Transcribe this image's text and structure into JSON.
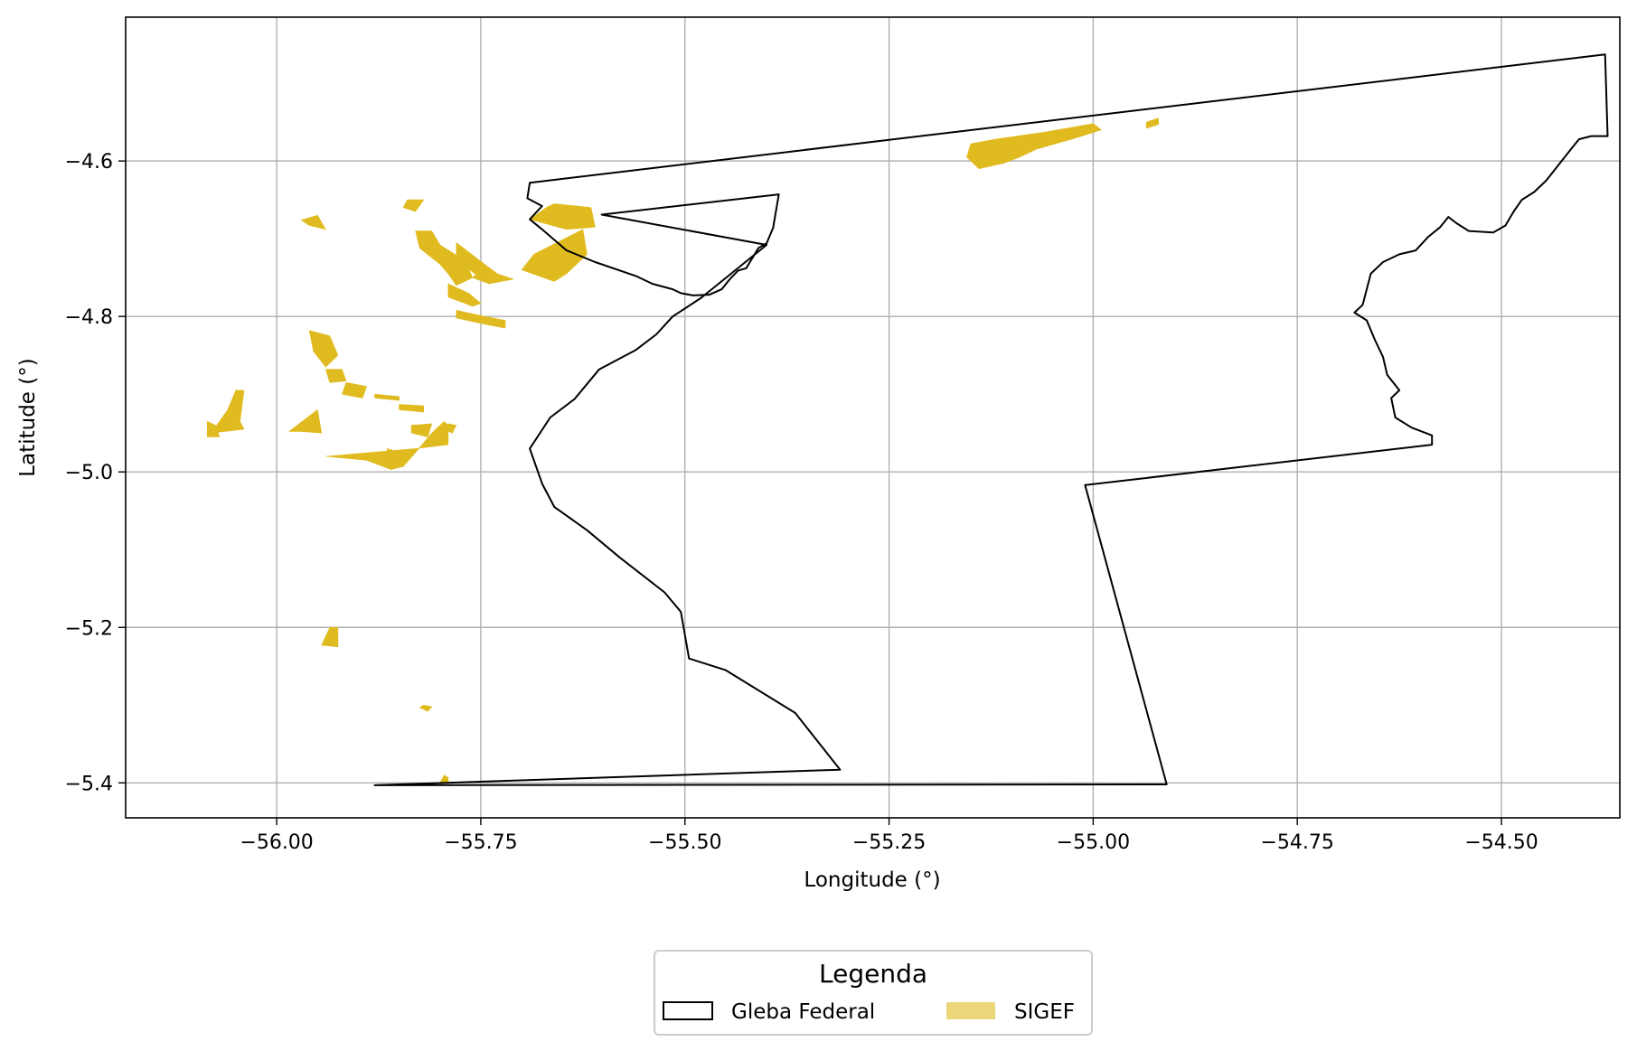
{
  "chart_data": {
    "type": "map",
    "title": "",
    "xlabel": "Longitude (°)",
    "ylabel": "Latitude (°)",
    "xlim": [
      -56.185,
      -54.355
    ],
    "ylim": [
      -5.445,
      -4.415
    ],
    "xticks": [
      -56.0,
      -55.75,
      -55.5,
      -55.25,
      -55.0,
      -54.75,
      -54.5
    ],
    "xtick_labels": [
      "−56.00",
      "−55.75",
      "−55.50",
      "−55.25",
      "−55.00",
      "−54.75",
      "−54.50"
    ],
    "yticks": [
      -4.6,
      -4.8,
      -5.0,
      -5.2,
      -5.4
    ],
    "ytick_labels": [
      "−4.6",
      "−4.8",
      "−5.0",
      "−5.2",
      "−5.4"
    ],
    "grid": true,
    "legend": {
      "title": "Legenda",
      "placement": "below",
      "entries": [
        {
          "label": "Gleba Federal",
          "style": "outline",
          "color": "#000000"
        },
        {
          "label": "SIGEF",
          "style": "fill",
          "color": "#e0bb1f"
        }
      ]
    },
    "series": [
      {
        "name": "Gleba Federal",
        "kind": "outline",
        "color": "#000000",
        "coordinates": [
          [
            -55.88,
            -5.403
          ],
          [
            -54.91,
            -5.402
          ],
          [
            -55.01,
            -5.017
          ],
          [
            -54.585,
            -4.965
          ],
          [
            -54.585,
            -4.953
          ],
          [
            -54.61,
            -4.943
          ],
          [
            -54.63,
            -4.93
          ],
          [
            -54.635,
            -4.905
          ],
          [
            -54.625,
            -4.895
          ],
          [
            -54.64,
            -4.875
          ],
          [
            -54.645,
            -4.852
          ],
          [
            -54.655,
            -4.83
          ],
          [
            -54.665,
            -4.805
          ],
          [
            -54.68,
            -4.795
          ],
          [
            -54.67,
            -4.785
          ],
          [
            -54.665,
            -4.765
          ],
          [
            -54.66,
            -4.745
          ],
          [
            -54.645,
            -4.73
          ],
          [
            -54.625,
            -4.72
          ],
          [
            -54.605,
            -4.715
          ],
          [
            -54.59,
            -4.698
          ],
          [
            -54.575,
            -4.685
          ],
          [
            -54.565,
            -4.672
          ],
          [
            -54.555,
            -4.68
          ],
          [
            -54.54,
            -4.69
          ],
          [
            -54.51,
            -4.692
          ],
          [
            -54.495,
            -4.683
          ],
          [
            -54.485,
            -4.665
          ],
          [
            -54.475,
            -4.65
          ],
          [
            -54.46,
            -4.64
          ],
          [
            -54.445,
            -4.625
          ],
          [
            -54.43,
            -4.605
          ],
          [
            -54.415,
            -4.585
          ],
          [
            -54.405,
            -4.572
          ],
          [
            -54.39,
            -4.568
          ],
          [
            -54.37,
            -4.568
          ],
          [
            -54.373,
            -4.463
          ],
          [
            -55.69,
            -4.628
          ],
          [
            -55.693,
            -4.648
          ],
          [
            -55.675,
            -4.658
          ],
          [
            -55.69,
            -4.675
          ],
          [
            -55.675,
            -4.688
          ],
          [
            -55.645,
            -4.715
          ],
          [
            -55.61,
            -4.73
          ],
          [
            -55.56,
            -4.748
          ],
          [
            -55.54,
            -4.758
          ],
          [
            -55.515,
            -4.765
          ],
          [
            -55.505,
            -4.77
          ],
          [
            -55.49,
            -4.773
          ],
          [
            -55.47,
            -4.772
          ],
          [
            -55.455,
            -4.765
          ],
          [
            -55.445,
            -4.752
          ],
          [
            -55.435,
            -4.741
          ],
          [
            -55.425,
            -4.738
          ],
          [
            -55.41,
            -4.712
          ],
          [
            -55.4,
            -4.706
          ],
          [
            -55.392,
            -4.686
          ],
          [
            -55.385,
            -4.643
          ],
          [
            -55.602,
            -4.669
          ],
          [
            -55.4,
            -4.708
          ],
          [
            -55.48,
            -4.776
          ],
          [
            -55.515,
            -4.8
          ],
          [
            -55.535,
            -4.823
          ],
          [
            -55.56,
            -4.843
          ],
          [
            -55.605,
            -4.868
          ],
          [
            -55.635,
            -4.906
          ],
          [
            -55.665,
            -4.93
          ],
          [
            -55.69,
            -4.97
          ],
          [
            -55.675,
            -5.015
          ],
          [
            -55.66,
            -5.045
          ],
          [
            -55.62,
            -5.075
          ],
          [
            -55.58,
            -5.11
          ],
          [
            -55.525,
            -5.155
          ],
          [
            -55.505,
            -5.18
          ],
          [
            -55.495,
            -5.24
          ],
          [
            -55.45,
            -5.255
          ],
          [
            -55.365,
            -5.31
          ],
          [
            -55.31,
            -5.383
          ],
          [
            -55.88,
            -5.403
          ]
        ]
      },
      {
        "name": "SIGEF",
        "kind": "fill",
        "color": "#e0bb1f",
        "polygons": [
          [
            [
              -55.15,
              -4.578
            ],
            [
              -55.12,
              -4.572
            ],
            [
              -55.06,
              -4.563
            ],
            [
              -55.0,
              -4.552
            ],
            [
              -54.99,
              -4.56
            ],
            [
              -55.02,
              -4.57
            ],
            [
              -55.07,
              -4.585
            ],
            [
              -55.09,
              -4.595
            ],
            [
              -55.11,
              -4.603
            ],
            [
              -55.14,
              -4.61
            ],
            [
              -55.155,
              -4.595
            ]
          ],
          [
            [
              -54.935,
              -4.55
            ],
            [
              -54.92,
              -4.545
            ],
            [
              -54.92,
              -4.553
            ],
            [
              -54.935,
              -4.558
            ]
          ],
          [
            [
              -55.69,
              -4.675
            ],
            [
              -55.67,
              -4.66
            ],
            [
              -55.66,
              -4.655
            ],
            [
              -55.615,
              -4.66
            ],
            [
              -55.61,
              -4.685
            ],
            [
              -55.645,
              -4.688
            ]
          ],
          [
            [
              -55.625,
              -4.688
            ],
            [
              -55.62,
              -4.72
            ],
            [
              -55.645,
              -4.745
            ],
            [
              -55.66,
              -4.755
            ],
            [
              -55.7,
              -4.74
            ],
            [
              -55.685,
              -4.72
            ]
          ],
          [
            [
              -55.78,
              -4.705
            ],
            [
              -55.755,
              -4.725
            ],
            [
              -55.73,
              -4.745
            ],
            [
              -55.71,
              -4.752
            ],
            [
              -55.74,
              -4.758
            ],
            [
              -55.78,
              -4.728
            ]
          ],
          [
            [
              -55.75,
              -4.74
            ],
            [
              -55.73,
              -4.745
            ],
            [
              -55.72,
              -4.753
            ],
            [
              -55.74,
              -4.758
            ],
            [
              -55.76,
              -4.75
            ]
          ],
          [
            [
              -55.83,
              -4.69
            ],
            [
              -55.81,
              -4.69
            ],
            [
              -55.8,
              -4.708
            ],
            [
              -55.77,
              -4.728
            ],
            [
              -55.76,
              -4.75
            ],
            [
              -55.78,
              -4.76
            ],
            [
              -55.79,
              -4.745
            ],
            [
              -55.8,
              -4.733
            ],
            [
              -55.825,
              -4.712
            ]
          ],
          [
            [
              -55.79,
              -4.758
            ],
            [
              -55.765,
              -4.77
            ],
            [
              -55.75,
              -4.783
            ],
            [
              -55.76,
              -4.787
            ],
            [
              -55.79,
              -4.775
            ]
          ],
          [
            [
              -55.97,
              -4.676
            ],
            [
              -55.95,
              -4.67
            ],
            [
              -55.94,
              -4.688
            ],
            [
              -55.96,
              -4.683
            ]
          ],
          [
            [
              -55.84,
              -4.65
            ],
            [
              -55.82,
              -4.65
            ],
            [
              -55.83,
              -4.665
            ],
            [
              -55.845,
              -4.66
            ]
          ],
          [
            [
              -55.78,
              -4.792
            ],
            [
              -55.745,
              -4.8
            ],
            [
              -55.72,
              -4.805
            ],
            [
              -55.72,
              -4.815
            ],
            [
              -55.745,
              -4.81
            ],
            [
              -55.78,
              -4.802
            ]
          ],
          [
            [
              -55.96,
              -4.818
            ],
            [
              -55.935,
              -4.825
            ],
            [
              -55.925,
              -4.85
            ],
            [
              -55.94,
              -4.865
            ],
            [
              -55.955,
              -4.845
            ]
          ],
          [
            [
              -55.94,
              -4.868
            ],
            [
              -55.92,
              -4.868
            ],
            [
              -55.915,
              -4.883
            ],
            [
              -55.935,
              -4.885
            ]
          ],
          [
            [
              -55.915,
              -4.885
            ],
            [
              -55.89,
              -4.89
            ],
            [
              -55.895,
              -4.905
            ],
            [
              -55.92,
              -4.9
            ]
          ],
          [
            [
              -55.88,
              -4.9
            ],
            [
              -55.85,
              -4.903
            ],
            [
              -55.85,
              -4.908
            ],
            [
              -55.88,
              -4.905
            ]
          ],
          [
            [
              -55.85,
              -4.913
            ],
            [
              -55.82,
              -4.915
            ],
            [
              -55.82,
              -4.923
            ],
            [
              -55.85,
              -4.92
            ]
          ],
          [
            [
              -55.835,
              -4.94
            ],
            [
              -55.81,
              -4.938
            ],
            [
              -55.815,
              -4.955
            ],
            [
              -55.835,
              -4.95
            ]
          ],
          [
            [
              -56.05,
              -4.895
            ],
            [
              -56.04,
              -4.895
            ],
            [
              -56.045,
              -4.935
            ],
            [
              -56.04,
              -4.945
            ],
            [
              -56.08,
              -4.95
            ],
            [
              -56.06,
              -4.92
            ]
          ],
          [
            [
              -56.085,
              -4.935
            ],
            [
              -56.075,
              -4.94
            ],
            [
              -56.07,
              -4.955
            ],
            [
              -56.085,
              -4.955
            ]
          ],
          [
            [
              -55.95,
              -4.92
            ],
            [
              -55.945,
              -4.95
            ],
            [
              -55.97,
              -4.948
            ],
            [
              -55.985,
              -4.948
            ]
          ],
          [
            [
              -55.94,
              -4.98
            ],
            [
              -55.83,
              -4.97
            ],
            [
              -55.79,
              -4.965
            ],
            [
              -55.79,
              -4.94
            ],
            [
              -55.795,
              -4.935
            ],
            [
              -55.81,
              -4.95
            ],
            [
              -55.83,
              -4.975
            ],
            [
              -55.845,
              -4.993
            ],
            [
              -55.86,
              -4.997
            ],
            [
              -55.89,
              -4.985
            ]
          ],
          [
            [
              -55.865,
              -4.97
            ],
            [
              -55.85,
              -4.975
            ],
            [
              -55.84,
              -4.985
            ],
            [
              -55.86,
              -4.987
            ]
          ],
          [
            [
              -55.79,
              -4.938
            ],
            [
              -55.78,
              -4.94
            ],
            [
              -55.785,
              -4.95
            ],
            [
              -55.795,
              -4.945
            ]
          ],
          [
            [
              -55.935,
              -5.2
            ],
            [
              -55.925,
              -5.2
            ],
            [
              -55.925,
              -5.225
            ],
            [
              -55.945,
              -5.223
            ]
          ],
          [
            [
              -55.82,
              -5.3
            ],
            [
              -55.81,
              -5.302
            ],
            [
              -55.815,
              -5.308
            ],
            [
              -55.825,
              -5.303
            ]
          ],
          [
            [
              -55.795,
              -5.39
            ],
            [
              -55.79,
              -5.393
            ],
            [
              -55.79,
              -5.4
            ],
            [
              -55.8,
              -5.4
            ]
          ]
        ]
      }
    ]
  }
}
